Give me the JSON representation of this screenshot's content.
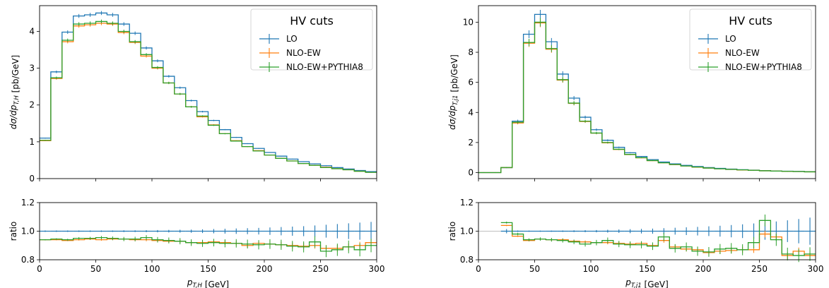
{
  "chart_data": [
    {
      "type": "line",
      "step": "histogram",
      "x_bin_edges": [
        0,
        10,
        20,
        30,
        40,
        50,
        60,
        70,
        80,
        90,
        100,
        110,
        120,
        130,
        140,
        150,
        160,
        170,
        180,
        190,
        200,
        210,
        220,
        230,
        240,
        250,
        260,
        270,
        280,
        290,
        300
      ],
      "xlim": [
        0,
        300
      ],
      "xticks": [
        0,
        50,
        100,
        150,
        200,
        250,
        300
      ],
      "xlabel": "p_{T,H} [GeV]",
      "main": {
        "ylabel": "dσ/dp_{T,H} [pb/GeV]",
        "ylim": [
          0,
          4.7
        ],
        "yticks": [
          0,
          1,
          2,
          3,
          4
        ],
        "legend": {
          "title": "HV cuts",
          "position": "top-right"
        },
        "series": [
          {
            "name": "LO",
            "color": "#1f77b4",
            "values": [
              1.1,
              2.9,
              3.98,
              4.42,
              4.45,
              4.5,
              4.45,
              4.2,
              3.95,
              3.55,
              3.2,
              2.78,
              2.47,
              2.12,
              1.82,
              1.58,
              1.33,
              1.12,
              0.95,
              0.82,
              0.71,
              0.61,
              0.53,
              0.46,
              0.4,
              0.35,
              0.3,
              0.26,
              0.22,
              0.19
            ]
          },
          {
            "name": "NLO-EW",
            "color": "#ff7f0e",
            "values": [
              1.03,
              2.72,
              3.72,
              4.15,
              4.18,
              4.22,
              4.2,
              3.97,
              3.7,
              3.33,
              3.0,
              2.6,
              2.3,
              1.95,
              1.68,
              1.46,
              1.22,
              1.03,
              0.87,
              0.76,
              0.64,
              0.55,
              0.48,
              0.41,
              0.36,
              0.31,
              0.27,
              0.24,
              0.2,
              0.17
            ]
          },
          {
            "name": "NLO-EW+PYTHIA8",
            "color": "#2ca02c",
            "values": [
              1.04,
              2.74,
              3.76,
              4.2,
              4.22,
              4.27,
              4.22,
              4.0,
              3.72,
              3.37,
              3.02,
              2.6,
              2.3,
              1.95,
              1.7,
              1.45,
              1.22,
              1.02,
              0.87,
              0.75,
              0.64,
              0.55,
              0.48,
              0.41,
              0.36,
              0.3,
              0.27,
              0.24,
              0.2,
              0.17
            ]
          }
        ]
      },
      "ratio": {
        "ylabel": "ratio",
        "ylim": [
          0.8,
          1.2
        ],
        "yticks": [
          0.8,
          1.0,
          1.2
        ],
        "reference_line": 1.0,
        "series": [
          {
            "name": "LO",
            "values": [
              1,
              1,
              1,
              1,
              1,
              1,
              1,
              1,
              1,
              1,
              1,
              1,
              1,
              1,
              1,
              1,
              1,
              1,
              1,
              1,
              1,
              1,
              1,
              1,
              1,
              1,
              1,
              1,
              1,
              1
            ],
            "errors": [
              0.005,
              0.005,
              0.005,
              0.005,
              0.005,
              0.005,
              0.005,
              0.006,
              0.006,
              0.007,
              0.008,
              0.009,
              0.01,
              0.011,
              0.013,
              0.015,
              0.017,
              0.019,
              0.021,
              0.023,
              0.026,
              0.029,
              0.032,
              0.035,
              0.04,
              0.045,
              0.05,
              0.055,
              0.06,
              0.065
            ]
          },
          {
            "name": "NLO-EW",
            "values": [
              0.94,
              0.94,
              0.935,
              0.94,
              0.945,
              0.94,
              0.945,
              0.945,
              0.94,
              0.94,
              0.935,
              0.93,
              0.93,
              0.92,
              0.92,
              0.925,
              0.92,
              0.915,
              0.9,
              0.915,
              0.91,
              0.905,
              0.9,
              0.895,
              0.9,
              0.88,
              0.88,
              0.89,
              0.9,
              0.92
            ]
          },
          {
            "name": "NLO-EW+PYTHIA8",
            "values": [
              0.94,
              0.945,
              0.94,
              0.95,
              0.95,
              0.955,
              0.95,
              0.945,
              0.945,
              0.955,
              0.94,
              0.935,
              0.93,
              0.92,
              0.915,
              0.92,
              0.915,
              0.915,
              0.91,
              0.905,
              0.91,
              0.905,
              0.895,
              0.89,
              0.925,
              0.86,
              0.87,
              0.89,
              0.87,
              0.9
            ]
          }
        ]
      }
    },
    {
      "type": "line",
      "step": "histogram",
      "x_bin_edges": [
        0,
        10,
        20,
        30,
        40,
        50,
        60,
        70,
        80,
        90,
        100,
        110,
        120,
        130,
        140,
        150,
        160,
        170,
        180,
        190,
        200,
        210,
        220,
        230,
        240,
        250,
        260,
        270,
        280,
        290,
        300
      ],
      "xlim": [
        0,
        300
      ],
      "xticks": [
        0,
        50,
        100,
        150,
        200,
        250,
        300
      ],
      "xlabel": "p_{T,j_1} [GeV]",
      "main": {
        "ylabel": "dσ/dp_{T,j_1} [pb/GeV]",
        "ylim": [
          -0.4,
          11.1
        ],
        "yticks": [
          0,
          2,
          4,
          6,
          8,
          10
        ],
        "legend": {
          "title": "HV cuts",
          "position": "top-right"
        },
        "series": [
          {
            "name": "LO",
            "color": "#1f77b4",
            "values": [
              0.0,
              0.0,
              0.32,
              3.42,
              9.2,
              10.52,
              8.7,
              6.55,
              4.95,
              3.68,
              2.85,
              2.15,
              1.68,
              1.32,
              1.07,
              0.86,
              0.7,
              0.58,
              0.48,
              0.4,
              0.33,
              0.28,
              0.23,
              0.19,
              0.16,
              0.13,
              0.11,
              0.09,
              0.08,
              0.06
            ]
          },
          {
            "name": "NLO-EW",
            "color": "#ff7f0e",
            "values": [
              0.0,
              0.0,
              0.33,
              3.3,
              8.6,
              9.95,
              8.2,
              6.15,
              4.6,
              3.4,
              2.62,
              1.98,
              1.54,
              1.2,
              0.98,
              0.79,
              0.65,
              0.53,
              0.44,
              0.36,
              0.3,
              0.25,
              0.21,
              0.17,
              0.15,
              0.12,
              0.1,
              0.08,
              0.07,
              0.05
            ]
          },
          {
            "name": "NLO-EW+PYTHIA8",
            "color": "#2ca02c",
            "values": [
              0.0,
              0.0,
              0.34,
              3.35,
              8.65,
              10.0,
              8.25,
              6.18,
              4.62,
              3.42,
              2.63,
              2.0,
              1.55,
              1.21,
              0.99,
              0.8,
              0.65,
              0.54,
              0.44,
              0.37,
              0.3,
              0.25,
              0.21,
              0.18,
              0.15,
              0.12,
              0.1,
              0.08,
              0.07,
              0.05
            ]
          }
        ]
      },
      "ratio": {
        "ylabel": "ratio",
        "ylim": [
          0.8,
          1.2
        ],
        "yticks": [
          0.8,
          1.0,
          1.2
        ],
        "reference_line": 1.0,
        "first_bin_shown": 2,
        "series": [
          {
            "name": "LO",
            "values": [
              1,
              1,
              1,
              1,
              1,
              1,
              1,
              1,
              1,
              1,
              1,
              1,
              1,
              1,
              1,
              1,
              1,
              1,
              1,
              1,
              1,
              1,
              1,
              1,
              1,
              1,
              1,
              1,
              1,
              1
            ],
            "errors": [
              0,
              0,
              0.015,
              0.005,
              0.004,
              0.004,
              0.004,
              0.005,
              0.006,
              0.007,
              0.008,
              0.01,
              0.012,
              0.014,
              0.016,
              0.018,
              0.021,
              0.024,
              0.027,
              0.03,
              0.034,
              0.038,
              0.043,
              0.048,
              0.054,
              0.06,
              0.068,
              0.076,
              0.085,
              0.095
            ]
          },
          {
            "name": "NLO-EW",
            "values": [
              null,
              null,
              1.04,
              0.965,
              0.935,
              0.945,
              0.94,
              0.94,
              0.93,
              0.925,
              0.92,
              0.92,
              0.915,
              0.91,
              0.915,
              0.9,
              0.935,
              0.89,
              0.875,
              0.87,
              0.85,
              0.86,
              0.865,
              0.87,
              0.87,
              0.98,
              0.96,
              0.83,
              0.86,
              0.83
            ]
          },
          {
            "name": "NLO-EW+PYTHIA8",
            "values": [
              null,
              null,
              1.06,
              0.98,
              0.94,
              0.945,
              0.94,
              0.935,
              0.925,
              0.91,
              0.92,
              0.935,
              0.91,
              0.905,
              0.905,
              0.895,
              0.96,
              0.88,
              0.89,
              0.86,
              0.855,
              0.875,
              0.88,
              0.87,
              0.92,
              1.075,
              0.94,
              0.84,
              0.83,
              0.84
            ]
          }
        ]
      }
    }
  ]
}
